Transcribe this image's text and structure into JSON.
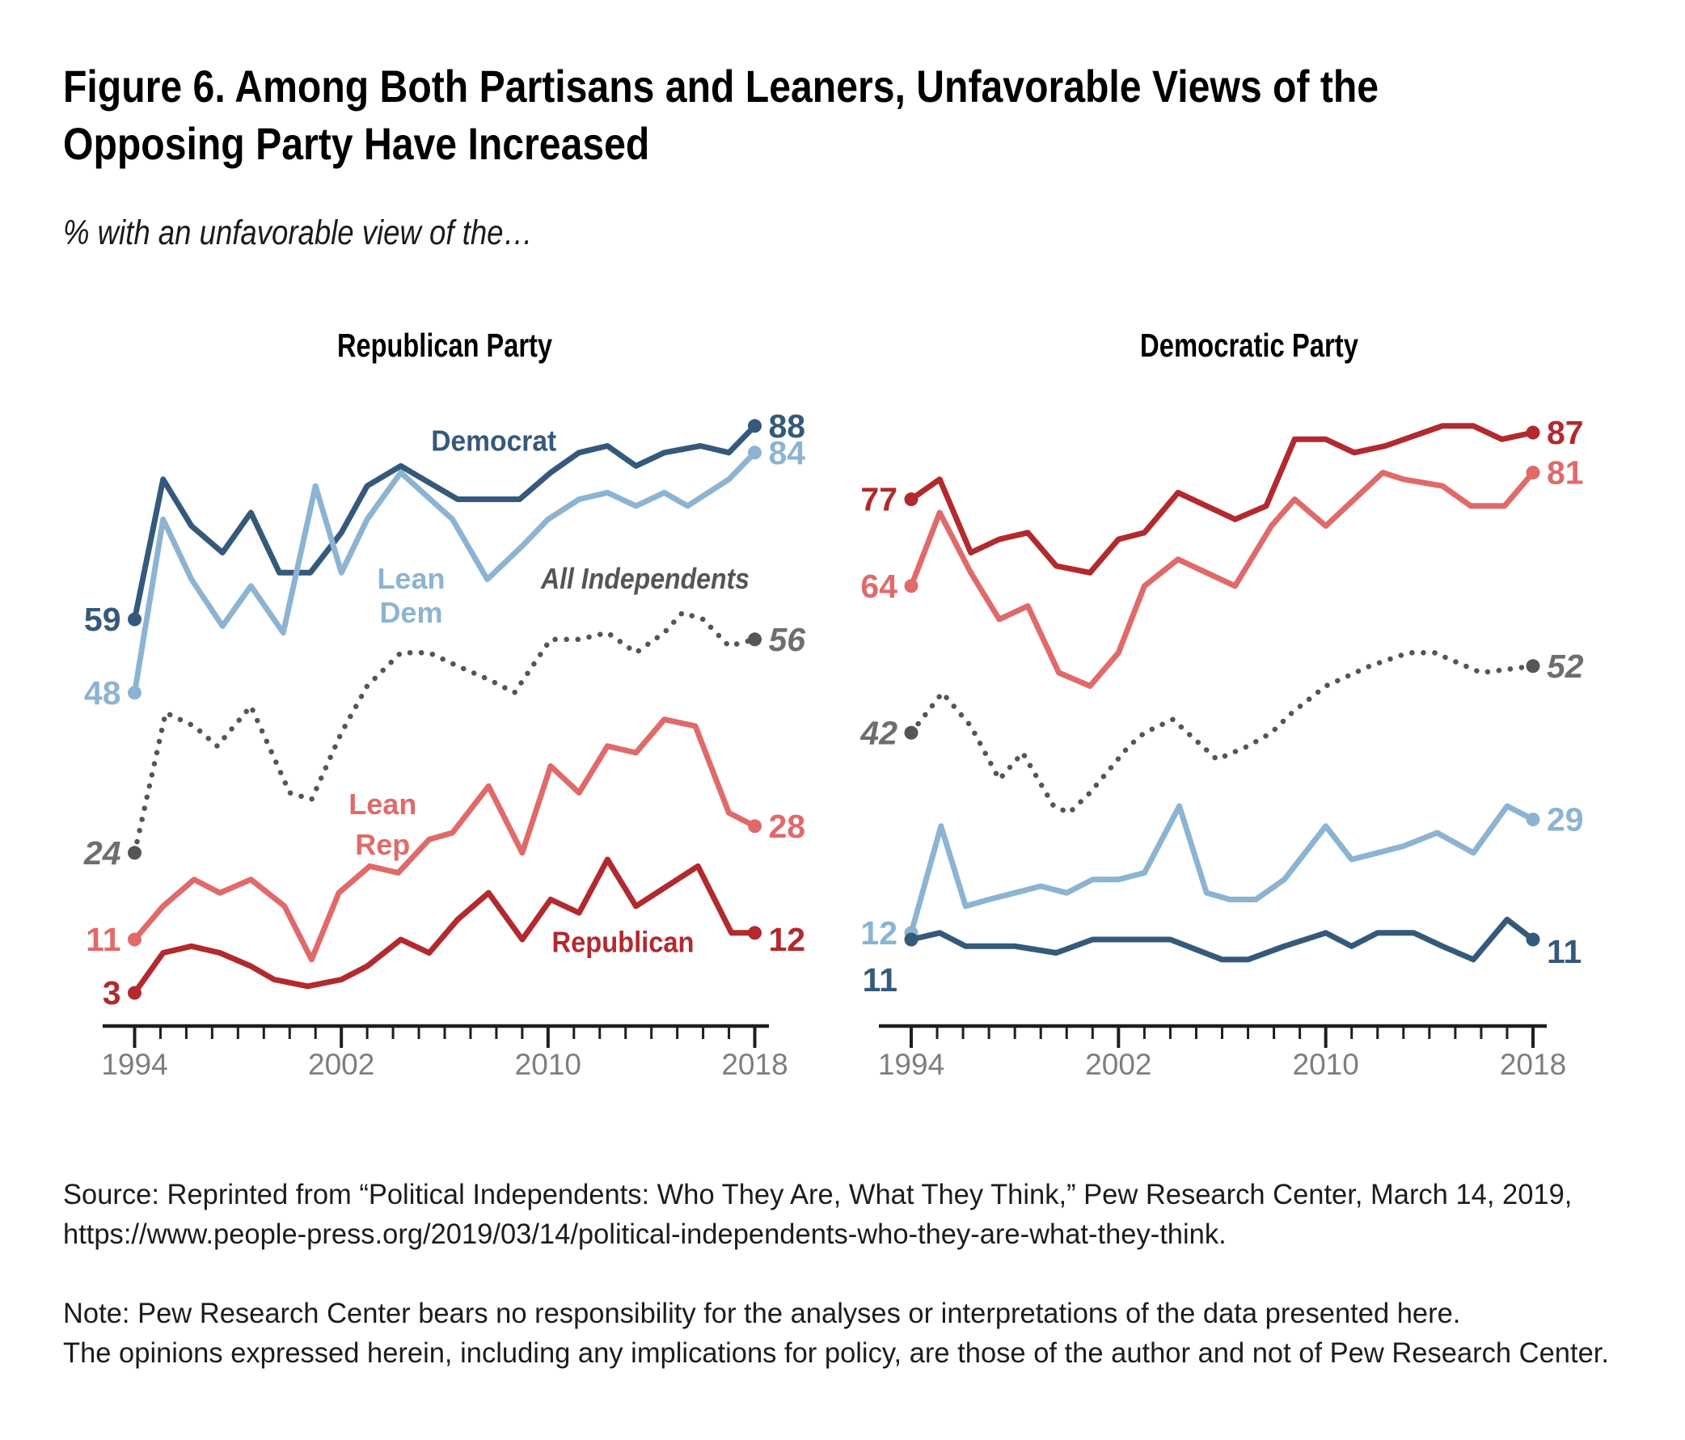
{
  "figure": {
    "title_line1": "Figure 6. Among Both Partisans and Leaners, Unfavorable Views of the",
    "title_line2": "Opposing Party Have Increased",
    "subtitle": "% with an unfavorable view of the…",
    "source_line1": "Source: Reprinted from “Political Independents: Who They Are, What They Think,” Pew Research Center, March 14, 2019,",
    "source_line2": "https://www.people-press.org/2019/03/14/political-independents-who-they-are-what-they-think.",
    "note_line1": "Note: Pew Research Center bears no responsibility for the analyses or interpretations of the data presented here.",
    "note_line2": "The opinions expressed herein, including any implications for policy, are those of the author and not of Pew Research Center."
  },
  "colors": {
    "dark_blue": "#35597b",
    "light_blue": "#8cb4d2",
    "gray": "#555558",
    "gray_label": "#6d6e71",
    "pink": "#e06a6a",
    "dark_red": "#b2292e",
    "axis": "#1e1e1e",
    "tick_label": "#7d7e81",
    "black": "#000000"
  },
  "chart_data": [
    {
      "type": "line",
      "title": "Republican Party",
      "xlabel": "",
      "ylabel": "% unfavorable",
      "x_range": [
        1994,
        2018
      ],
      "y_range": [
        0,
        100
      ],
      "x_tick_step": 1,
      "x_tick_labels": [
        "1994",
        "2002",
        "2010",
        "2018"
      ],
      "x_labeled_ticks": [
        1994,
        2002,
        2010,
        2018
      ],
      "grid": false,
      "legend_position": "inline-labels",
      "series": [
        {
          "id": "democrat",
          "name": "Democrat",
          "color_key": "dark_blue",
          "style": "solid",
          "start_label": "59",
          "end_label": "88",
          "label": {
            "lines": [
              "Democrat"
            ],
            "at": [
              2007.9,
              84.3
            ],
            "italic": false
          },
          "points": [
            [
              1994,
              59
            ],
            [
              1995.1,
              80
            ],
            [
              1996.2,
              73
            ],
            [
              1997.4,
              69
            ],
            [
              1998.5,
              75
            ],
            [
              1999.6,
              66
            ],
            [
              2000.8,
              66
            ],
            [
              2002,
              72
            ],
            [
              2003,
              79
            ],
            [
              2004.3,
              82
            ],
            [
              2006.5,
              77
            ],
            [
              2008.9,
              77
            ],
            [
              2010.1,
              81
            ],
            [
              2011.2,
              84
            ],
            [
              2012.3,
              85
            ],
            [
              2013.4,
              82
            ],
            [
              2014.5,
              84
            ],
            [
              2015.9,
              85
            ],
            [
              2017,
              84
            ],
            [
              2018,
              88
            ]
          ]
        },
        {
          "id": "lean-dem",
          "name": "Lean Dem",
          "color_key": "light_blue",
          "style": "solid",
          "start_label": "48",
          "end_label": "84",
          "label": {
            "lines": [
              "Lean",
              "Dem"
            ],
            "at": [
              2004.7,
              63.6
            ],
            "italic": false,
            "line_gap": 42
          },
          "points": [
            [
              1994,
              48
            ],
            [
              1995.1,
              74
            ],
            [
              1996.2,
              65
            ],
            [
              1997.4,
              58
            ],
            [
              1998.5,
              64
            ],
            [
              1999.75,
              57
            ],
            [
              2001,
              79
            ],
            [
              2002,
              66
            ],
            [
              2003,
              74
            ],
            [
              2004.3,
              81
            ],
            [
              2006.3,
              74
            ],
            [
              2007.65,
              65
            ],
            [
              2009,
              70
            ],
            [
              2010,
              74
            ],
            [
              2011.2,
              77
            ],
            [
              2012.3,
              78
            ],
            [
              2013.4,
              76
            ],
            [
              2014.5,
              78
            ],
            [
              2015.4,
              76
            ],
            [
              2017,
              80
            ],
            [
              2018,
              84
            ]
          ]
        },
        {
          "id": "all-independents",
          "name": "All Independents",
          "color_key": "gray",
          "style": "dotted",
          "start_label": "24",
          "end_label": "56",
          "label": {
            "lines": [
              "All Independents"
            ],
            "at": [
              2013.76,
              63.6
            ],
            "italic": true
          },
          "points": [
            [
              1994,
              24
            ],
            [
              1995.2,
              45
            ],
            [
              1996.3,
              43
            ],
            [
              1997.2,
              40
            ],
            [
              1998.5,
              46
            ],
            [
              2000,
              33
            ],
            [
              2000.85,
              32
            ],
            [
              2002,
              42
            ],
            [
              2003,
              49
            ],
            [
              2004.3,
              54
            ],
            [
              2005.4,
              54
            ],
            [
              2006.5,
              52
            ],
            [
              2007.7,
              50
            ],
            [
              2008.7,
              48
            ],
            [
              2010.1,
              56
            ],
            [
              2011.2,
              56
            ],
            [
              2012.3,
              57
            ],
            [
              2013.4,
              54
            ],
            [
              2014.5,
              57
            ],
            [
              2015.2,
              60
            ],
            [
              2016,
              59
            ],
            [
              2017,
              55
            ],
            [
              2018,
              56
            ]
          ]
        },
        {
          "id": "lean-rep",
          "name": "Lean Rep",
          "color_key": "pink",
          "style": "solid",
          "start_label": "11",
          "end_label": "28",
          "label": {
            "lines": [
              "Lean",
              "Rep"
            ],
            "at": [
              2003.6,
              29.8
            ],
            "italic": false,
            "line_gap": 50
          },
          "points": [
            [
              1994,
              11
            ],
            [
              1995.1,
              16
            ],
            [
              1996.3,
              20
            ],
            [
              1997.3,
              18
            ],
            [
              1998.5,
              20
            ],
            [
              1999.8,
              16
            ],
            [
              2000.85,
              8
            ],
            [
              2001.9,
              18
            ],
            [
              2003.1,
              22
            ],
            [
              2004.2,
              21
            ],
            [
              2005.4,
              26
            ],
            [
              2006.3,
              27
            ],
            [
              2007.7,
              34
            ],
            [
              2009,
              24
            ],
            [
              2010.1,
              37
            ],
            [
              2011.2,
              33
            ],
            [
              2012.3,
              40
            ],
            [
              2013.4,
              39
            ],
            [
              2014.5,
              44
            ],
            [
              2015.7,
              43
            ],
            [
              2017,
              30
            ],
            [
              2018,
              28
            ]
          ]
        },
        {
          "id": "republican",
          "name": "Republican",
          "color_key": "dark_red",
          "style": "solid",
          "start_label": "3",
          "end_label": "12",
          "end_label_dy": 8,
          "label": {
            "lines": [
              "Republican"
            ],
            "at": [
              2012.9,
              9.1
            ],
            "italic": false
          },
          "points": [
            [
              1994,
              3
            ],
            [
              1995.1,
              9
            ],
            [
              1996.2,
              10
            ],
            [
              1997.3,
              9
            ],
            [
              1998.5,
              7
            ],
            [
              1999.4,
              5
            ],
            [
              2000.7,
              4
            ],
            [
              2002,
              5
            ],
            [
              2003,
              7
            ],
            [
              2004.3,
              11
            ],
            [
              2005.4,
              9
            ],
            [
              2006.5,
              14
            ],
            [
              2007.7,
              18
            ],
            [
              2009,
              11
            ],
            [
              2010.1,
              17
            ],
            [
              2011.2,
              15
            ],
            [
              2012.3,
              23
            ],
            [
              2013.4,
              16
            ],
            [
              2015.8,
              22
            ],
            [
              2017.1,
              12
            ],
            [
              2018,
              12
            ]
          ]
        }
      ]
    },
    {
      "type": "line",
      "title": "Democratic Party",
      "xlabel": "",
      "ylabel": "% unfavorable",
      "x_range": [
        1994,
        2018
      ],
      "y_range": [
        0,
        100
      ],
      "x_tick_step": 1,
      "x_tick_labels": [
        "1994",
        "2002",
        "2010",
        "2018"
      ],
      "x_labeled_ticks": [
        1994,
        2002,
        2010,
        2018
      ],
      "grid": false,
      "legend_position": "inline-labels",
      "series": [
        {
          "id": "republican",
          "name": "Republican",
          "color_key": "dark_red",
          "style": "solid",
          "start_label": "77",
          "end_label": "87",
          "points": [
            [
              1994,
              77
            ],
            [
              1995.1,
              80
            ],
            [
              1996.3,
              69
            ],
            [
              1997.4,
              71
            ],
            [
              1998.5,
              72
            ],
            [
              1999.6,
              67
            ],
            [
              2000.9,
              66
            ],
            [
              2002,
              71
            ],
            [
              2003,
              72
            ],
            [
              2004.3,
              78
            ],
            [
              2005.4,
              76
            ],
            [
              2006.5,
              74
            ],
            [
              2007.7,
              76
            ],
            [
              2008.8,
              86
            ],
            [
              2010,
              86
            ],
            [
              2011.1,
              84
            ],
            [
              2012.3,
              85
            ],
            [
              2014.5,
              88
            ],
            [
              2015.7,
              88
            ],
            [
              2016.8,
              86
            ],
            [
              2018,
              87
            ]
          ]
        },
        {
          "id": "lean-rep",
          "name": "Lean Rep",
          "color_key": "pink",
          "style": "solid",
          "start_label": "64",
          "end_label": "81",
          "points": [
            [
              1994,
              64
            ],
            [
              1995.1,
              75
            ],
            [
              1996.3,
              66
            ],
            [
              1997.4,
              59
            ],
            [
              1998.5,
              61
            ],
            [
              1999.7,
              51
            ],
            [
              2000.9,
              49
            ],
            [
              2002,
              54
            ],
            [
              2003,
              64
            ],
            [
              2004.3,
              68
            ],
            [
              2005.4,
              66
            ],
            [
              2006.5,
              64
            ],
            [
              2007.9,
              73
            ],
            [
              2008.8,
              77
            ],
            [
              2010,
              73
            ],
            [
              2012.2,
              81
            ],
            [
              2013,
              80
            ],
            [
              2014.5,
              79
            ],
            [
              2015.6,
              76
            ],
            [
              2016.9,
              76
            ],
            [
              2018,
              81
            ]
          ]
        },
        {
          "id": "all-independents",
          "name": "All Independents",
          "color_key": "gray",
          "style": "dotted",
          "start_label": "42",
          "end_label": "52",
          "points": [
            [
              1994,
              42
            ],
            [
              1995.2,
              48
            ],
            [
              1996.3,
              43
            ],
            [
              1997.4,
              35
            ],
            [
              1998.3,
              39
            ],
            [
              1999.5,
              31
            ],
            [
              2000.1,
              30
            ],
            [
              2000.9,
              33
            ],
            [
              2002.4,
              40
            ],
            [
              2003,
              42
            ],
            [
              2004.1,
              44
            ],
            [
              2005.8,
              38
            ],
            [
              2007,
              40
            ],
            [
              2007.9,
              42
            ],
            [
              2008.7,
              45
            ],
            [
              2010,
              49
            ],
            [
              2011.7,
              52
            ],
            [
              2013.2,
              54
            ],
            [
              2014.2,
              54
            ],
            [
              2016,
              51
            ],
            [
              2018,
              52
            ]
          ]
        },
        {
          "id": "lean-dem",
          "name": "Lean Dem",
          "color_key": "light_blue",
          "style": "solid",
          "start_label": "12",
          "end_label": "29",
          "points": [
            [
              1994,
              12
            ],
            [
              1995.15,
              28
            ],
            [
              1996.1,
              16
            ],
            [
              1997,
              17
            ],
            [
              1998,
              18
            ],
            [
              1999,
              19
            ],
            [
              2000,
              18
            ],
            [
              2001,
              20
            ],
            [
              2002,
              20
            ],
            [
              2003,
              21
            ],
            [
              2004.35,
              31
            ],
            [
              2005.4,
              18
            ],
            [
              2006.3,
              17
            ],
            [
              2007.3,
              17
            ],
            [
              2008.4,
              20
            ],
            [
              2010,
              28
            ],
            [
              2011,
              23
            ],
            [
              2012,
              24
            ],
            [
              2013,
              25
            ],
            [
              2014.3,
              27
            ],
            [
              2015.7,
              24
            ],
            [
              2017,
              31
            ],
            [
              2018,
              29
            ]
          ]
        },
        {
          "id": "democrat",
          "name": "Democrat",
          "color_key": "dark_blue",
          "style": "solid",
          "start_label": "11",
          "start_label_dy": 50,
          "end_label": "11",
          "end_label_dy": 15,
          "points": [
            [
              1994,
              11
            ],
            [
              1995.1,
              12
            ],
            [
              1996.1,
              10
            ],
            [
              1998,
              10
            ],
            [
              1999.6,
              9
            ],
            [
              2001,
              11
            ],
            [
              2003,
              11
            ],
            [
              2004,
              11
            ],
            [
              2006,
              8
            ],
            [
              2007,
              8
            ],
            [
              2008.4,
              10
            ],
            [
              2010,
              12
            ],
            [
              2011,
              10
            ],
            [
              2012,
              12
            ],
            [
              2013.4,
              12
            ],
            [
              2014.5,
              10
            ],
            [
              2015.7,
              8
            ],
            [
              2017,
              14
            ],
            [
              2018,
              11
            ]
          ]
        }
      ]
    }
  ]
}
